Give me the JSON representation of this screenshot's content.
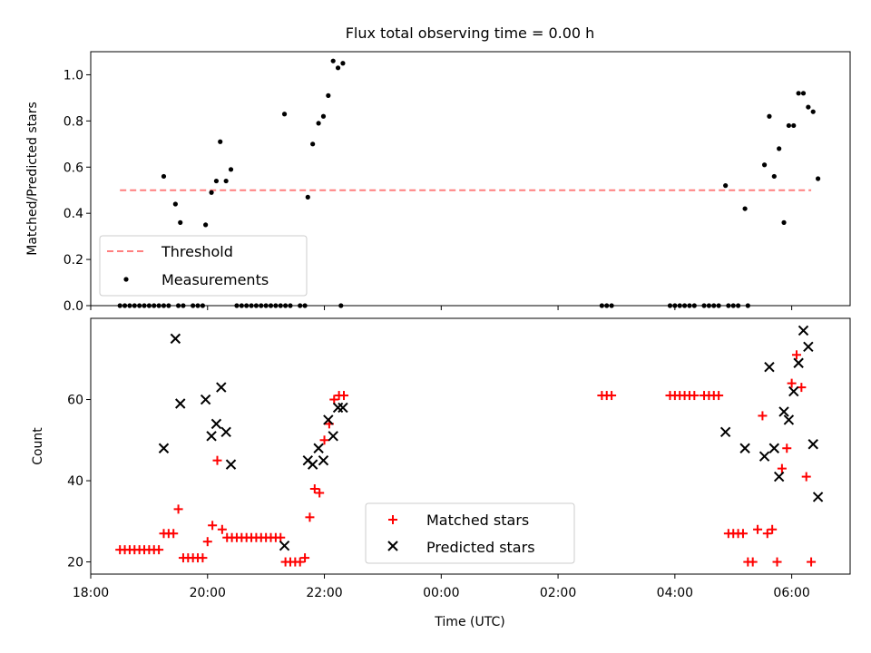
{
  "figure": {
    "title": "Flux total observing time = 0.00 h",
    "xlabel": "Time (UTC)"
  },
  "chart_data": [
    {
      "type": "scatter",
      "panel": "top",
      "ylabel": "Matched/Predicted stars",
      "xlim": [
        "18:00",
        "07:00"
      ],
      "ylim": [
        0,
        1.1
      ],
      "yticks": [
        "0.0",
        "0.2",
        "0.4",
        "0.6",
        "0.8",
        "1.0"
      ],
      "legend": {
        "placement": "lower-left",
        "entries": [
          "Threshold",
          "Measurements"
        ]
      },
      "threshold": {
        "name": "Threshold",
        "value": 0.5,
        "x_start": "18:30",
        "x_end": "06:20",
        "color": "#ff7f7f",
        "style": "dashed"
      },
      "series": [
        {
          "name": "Measurements",
          "color": "#000000",
          "points": [
            [
              "18:30",
              0
            ],
            [
              "18:35",
              0
            ],
            [
              "18:40",
              0
            ],
            [
              "18:45",
              0
            ],
            [
              "18:50",
              0
            ],
            [
              "18:55",
              0
            ],
            [
              "19:00",
              0
            ],
            [
              "19:05",
              0
            ],
            [
              "19:10",
              0
            ],
            [
              "19:15",
              0
            ],
            [
              "19:20",
              0
            ],
            [
              "19:30",
              0
            ],
            [
              "19:35",
              0
            ],
            [
              "19:45",
              0
            ],
            [
              "19:50",
              0
            ],
            [
              "19:55",
              0
            ],
            [
              "20:30",
              0
            ],
            [
              "20:35",
              0
            ],
            [
              "20:40",
              0
            ],
            [
              "20:45",
              0
            ],
            [
              "20:50",
              0
            ],
            [
              "20:55",
              0
            ],
            [
              "21:00",
              0
            ],
            [
              "21:05",
              0
            ],
            [
              "21:10",
              0
            ],
            [
              "21:15",
              0
            ],
            [
              "21:20",
              0
            ],
            [
              "21:25",
              0
            ],
            [
              "21:35",
              0
            ],
            [
              "21:40",
              0
            ],
            [
              "22:17",
              0
            ],
            [
              "02:45",
              0
            ],
            [
              "02:50",
              0
            ],
            [
              "02:55",
              0
            ],
            [
              "03:55",
              0
            ],
            [
              "04:00",
              0
            ],
            [
              "04:05",
              0
            ],
            [
              "04:10",
              0
            ],
            [
              "04:15",
              0
            ],
            [
              "04:20",
              0
            ],
            [
              "04:30",
              0
            ],
            [
              "04:35",
              0
            ],
            [
              "04:40",
              0
            ],
            [
              "04:45",
              0
            ],
            [
              "04:55",
              0
            ],
            [
              "05:00",
              0
            ],
            [
              "05:05",
              0
            ],
            [
              "05:15",
              0
            ],
            [
              "19:15",
              0.56
            ],
            [
              "19:27",
              0.44
            ],
            [
              "19:32",
              0.36
            ],
            [
              "19:58",
              0.35
            ],
            [
              "20:04",
              0.49
            ],
            [
              "20:09",
              0.54
            ],
            [
              "20:13",
              0.71
            ],
            [
              "20:19",
              0.54
            ],
            [
              "20:24",
              0.59
            ],
            [
              "21:19",
              0.83
            ],
            [
              "21:43",
              0.47
            ],
            [
              "21:48",
              0.7
            ],
            [
              "21:54",
              0.79
            ],
            [
              "21:59",
              0.82
            ],
            [
              "22:04",
              0.91
            ],
            [
              "22:09",
              1.06
            ],
            [
              "22:14",
              1.03
            ],
            [
              "22:19",
              1.05
            ],
            [
              "04:52",
              0.52
            ],
            [
              "05:12",
              0.42
            ],
            [
              "05:32",
              0.61
            ],
            [
              "05:37",
              0.82
            ],
            [
              "05:42",
              0.56
            ],
            [
              "05:47",
              0.68
            ],
            [
              "05:52",
              0.36
            ],
            [
              "05:57",
              0.78
            ],
            [
              "06:02",
              0.78
            ],
            [
              "06:07",
              0.92
            ],
            [
              "06:12",
              0.92
            ],
            [
              "06:17",
              0.86
            ],
            [
              "06:22",
              0.84
            ],
            [
              "06:27",
              0.55
            ]
          ]
        }
      ]
    },
    {
      "type": "scatter",
      "panel": "bottom",
      "ylabel": "Count",
      "xlim": [
        "18:00",
        "07:00"
      ],
      "ylim": [
        17,
        80
      ],
      "xticks": [
        "18:00",
        "20:00",
        "22:00",
        "00:00",
        "02:00",
        "04:00",
        "06:00"
      ],
      "yticks": [
        "20",
        "40",
        "60"
      ],
      "legend": {
        "placement": "lower-center",
        "entries": [
          "Matched stars",
          "Predicted stars"
        ]
      },
      "series": [
        {
          "name": "Matched stars",
          "color": "#ff0000",
          "marker": "plus",
          "points": [
            [
              "18:30",
              23
            ],
            [
              "18:35",
              23
            ],
            [
              "18:40",
              23
            ],
            [
              "18:45",
              23
            ],
            [
              "18:50",
              23
            ],
            [
              "18:55",
              23
            ],
            [
              "19:00",
              23
            ],
            [
              "19:05",
              23
            ],
            [
              "19:10",
              23
            ],
            [
              "19:15",
              27
            ],
            [
              "19:20",
              27
            ],
            [
              "19:25",
              27
            ],
            [
              "19:30",
              33
            ],
            [
              "19:35",
              21
            ],
            [
              "19:40",
              21
            ],
            [
              "19:45",
              21
            ],
            [
              "19:50",
              21
            ],
            [
              "19:55",
              21
            ],
            [
              "20:00",
              25
            ],
            [
              "20:05",
              29
            ],
            [
              "20:10",
              45
            ],
            [
              "20:15",
              28
            ],
            [
              "20:20",
              26
            ],
            [
              "20:25",
              26
            ],
            [
              "20:30",
              26
            ],
            [
              "20:35",
              26
            ],
            [
              "20:40",
              26
            ],
            [
              "20:45",
              26
            ],
            [
              "20:50",
              26
            ],
            [
              "20:55",
              26
            ],
            [
              "21:00",
              26
            ],
            [
              "21:05",
              26
            ],
            [
              "21:10",
              26
            ],
            [
              "21:15",
              26
            ],
            [
              "21:20",
              20
            ],
            [
              "21:25",
              20
            ],
            [
              "21:30",
              20
            ],
            [
              "21:35",
              20
            ],
            [
              "21:40",
              21
            ],
            [
              "21:45",
              31
            ],
            [
              "21:50",
              38
            ],
            [
              "21:55",
              37
            ],
            [
              "22:00",
              50
            ],
            [
              "22:05",
              54
            ],
            [
              "22:10",
              60
            ],
            [
              "22:15",
              61
            ],
            [
              "22:20",
              61
            ],
            [
              "02:45",
              61
            ],
            [
              "02:50",
              61
            ],
            [
              "02:55",
              61
            ],
            [
              "03:55",
              61
            ],
            [
              "04:00",
              61
            ],
            [
              "04:05",
              61
            ],
            [
              "04:10",
              61
            ],
            [
              "04:15",
              61
            ],
            [
              "04:20",
              61
            ],
            [
              "04:30",
              61
            ],
            [
              "04:35",
              61
            ],
            [
              "04:40",
              61
            ],
            [
              "04:45",
              61
            ],
            [
              "04:55",
              27
            ],
            [
              "05:00",
              27
            ],
            [
              "05:05",
              27
            ],
            [
              "05:10",
              27
            ],
            [
              "05:15",
              20
            ],
            [
              "05:20",
              20
            ],
            [
              "05:25",
              28
            ],
            [
              "05:30",
              56
            ],
            [
              "05:35",
              27
            ],
            [
              "05:40",
              28
            ],
            [
              "05:45",
              20
            ],
            [
              "05:50",
              43
            ],
            [
              "05:55",
              48
            ],
            [
              "06:00",
              64
            ],
            [
              "06:05",
              71
            ],
            [
              "06:10",
              63
            ],
            [
              "06:15",
              41
            ],
            [
              "06:20",
              20
            ]
          ]
        },
        {
          "name": "Predicted stars",
          "color": "#000000",
          "marker": "x",
          "points": [
            [
              "19:15",
              48
            ],
            [
              "19:27",
              75
            ],
            [
              "19:32",
              59
            ],
            [
              "19:58",
              60
            ],
            [
              "20:04",
              51
            ],
            [
              "20:09",
              54
            ],
            [
              "20:14",
              63
            ],
            [
              "20:19",
              52
            ],
            [
              "20:24",
              44
            ],
            [
              "21:19",
              24
            ],
            [
              "21:43",
              45
            ],
            [
              "21:48",
              44
            ],
            [
              "21:54",
              48
            ],
            [
              "21:59",
              45
            ],
            [
              "22:04",
              55
            ],
            [
              "22:09",
              51
            ],
            [
              "22:14",
              58
            ],
            [
              "22:19",
              58
            ],
            [
              "04:52",
              52
            ],
            [
              "05:12",
              48
            ],
            [
              "05:32",
              46
            ],
            [
              "05:37",
              68
            ],
            [
              "05:42",
              48
            ],
            [
              "05:47",
              41
            ],
            [
              "05:52",
              57
            ],
            [
              "05:57",
              55
            ],
            [
              "06:02",
              62
            ],
            [
              "06:07",
              69
            ],
            [
              "06:12",
              77
            ],
            [
              "06:17",
              73
            ],
            [
              "06:22",
              49
            ],
            [
              "06:27",
              36
            ]
          ]
        }
      ]
    }
  ]
}
